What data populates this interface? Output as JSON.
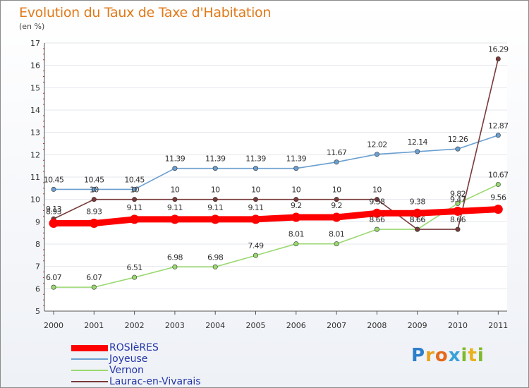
{
  "title": "Evolution du Taux de Taxe d'Habitation",
  "unit": "(en %)",
  "logo": [
    "P",
    "r",
    "o",
    "x",
    "i",
    "t",
    "i"
  ],
  "chart_data": {
    "type": "line",
    "title": "Evolution du Taux de Taxe d'Habitation",
    "ylabel": "(en %)",
    "ylim": [
      5,
      17
    ],
    "yticks": [
      "5",
      "6",
      "7",
      "8",
      "9",
      "10",
      "11",
      "12",
      "13",
      "14",
      "15",
      "16",
      "17"
    ],
    "categories": [
      "2000",
      "2001",
      "2002",
      "2003",
      "2004",
      "2005",
      "2006",
      "2007",
      "2008",
      "2009",
      "2010",
      "2011"
    ],
    "series": [
      {
        "name": "ROSIèRES",
        "color": "#ff0000",
        "values": [
          8.93,
          8.93,
          9.11,
          9.11,
          9.11,
          9.11,
          9.2,
          9.2,
          9.38,
          9.38,
          9.47,
          9.56
        ],
        "labels": [
          "8.93",
          "8.93",
          "9.11",
          "9.11",
          "9.11",
          "9.11",
          "9.2",
          "9.2",
          "9.38",
          "9.38",
          "9.47",
          "9.56"
        ]
      },
      {
        "name": "Joyeuse",
        "color": "#6a9fd0",
        "values": [
          10.45,
          10.45,
          10.45,
          11.39,
          11.39,
          11.39,
          11.39,
          11.67,
          12.02,
          12.14,
          12.26,
          12.87
        ],
        "labels": [
          "10.45",
          "10.45",
          "10.45",
          "11.39",
          "11.39",
          "11.39",
          "11.39",
          "11.67",
          "12.02",
          "12.14",
          "12.26",
          "12.87"
        ]
      },
      {
        "name": "Vernon",
        "color": "#9ad870",
        "values": [
          6.07,
          6.07,
          6.51,
          6.98,
          6.98,
          7.49,
          8.01,
          8.01,
          8.66,
          8.66,
          9.82,
          10.67
        ],
        "labels": [
          "6.07",
          "6.07",
          "6.51",
          "6.98",
          "6.98",
          "7.49",
          "8.01",
          "8.01",
          "8.66",
          "8.66",
          "9.82",
          "10.67"
        ]
      },
      {
        "name": "Laurac-en-Vivarais",
        "color": "#7a3a3a",
        "values": [
          9.13,
          10,
          10,
          10,
          10,
          10,
          10,
          10,
          10,
          8.66,
          8.66,
          16.29
        ],
        "labels": [
          "9.13",
          "10",
          "10",
          "10",
          "10",
          "10",
          "10",
          "10",
          "10",
          "8.66",
          "8.66",
          "16.29"
        ]
      }
    ]
  }
}
